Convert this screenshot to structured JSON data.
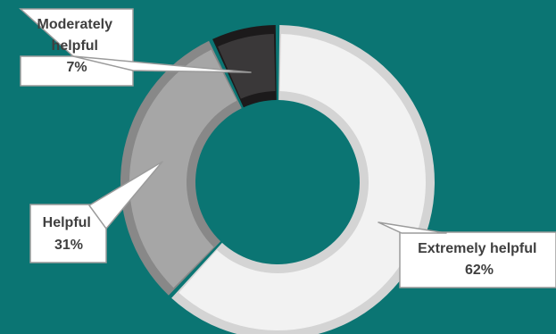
{
  "chart_data": {
    "type": "pie",
    "donut": true,
    "categories": [
      "Extremely helpful",
      "Helpful",
      "Moderately helpful"
    ],
    "values": [
      62,
      31,
      7
    ],
    "value_labels": [
      "62%",
      "31%",
      "7%"
    ],
    "colors": [
      "#f2f2f2",
      "#a6a6a6",
      "#3a3839"
    ],
    "title": "",
    "legend": "none",
    "labels": [
      {
        "lines": [
          "Moderately",
          "helpful",
          "7%"
        ]
      },
      {
        "lines": [
          "Helpful",
          "31%"
        ]
      },
      {
        "lines": [
          "Extremely helpful",
          "62%"
        ]
      }
    ]
  }
}
